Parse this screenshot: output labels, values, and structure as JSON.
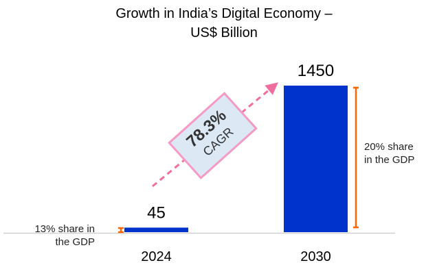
{
  "chart_data": {
    "type": "bar",
    "title": "Growth in India’s Digital Economy – US$ Billion",
    "title_lines": [
      "Growth in India’s Digital Economy –",
      "US$ Billion"
    ],
    "categories": [
      "2024",
      "2030"
    ],
    "values": [
      45,
      1450
    ],
    "data_labels": [
      "45",
      "1450"
    ],
    "bar_color": "#0033cc",
    "annotations": {
      "cagr_value": "78.3%",
      "cagr_label": "CAGR",
      "share_2024": [
        "13% share in",
        "the GDP"
      ],
      "share_2030": [
        "20% share",
        "in the GDP"
      ],
      "bracket_color": "#ff6600",
      "arrow_color": "#f06e9e"
    },
    "grid": false
  }
}
